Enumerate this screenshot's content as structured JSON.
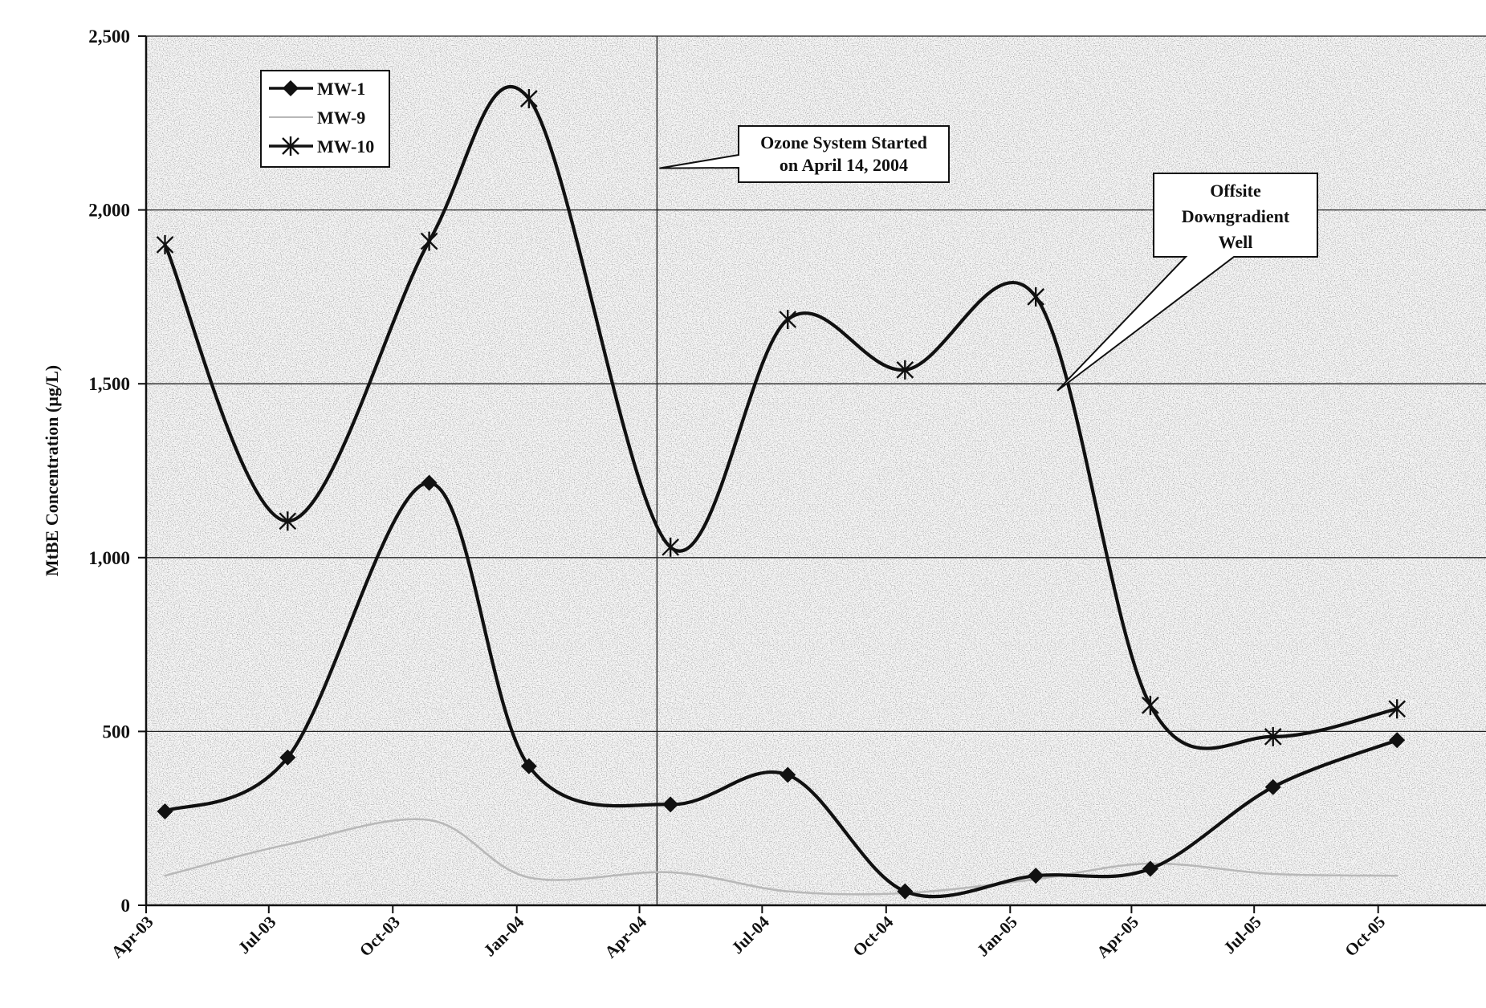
{
  "chart_data": {
    "type": "line",
    "title": "",
    "xlabel": "",
    "ylabel": "MtBE Concentration (µg/L)",
    "categories": [
      "Apr-03",
      "Jul-03",
      "Oct-03",
      "Jan-04",
      "Apr-04",
      "Jul-04",
      "Oct-04",
      "Jan-05",
      "Apr-05",
      "Jul-05",
      "Oct-05"
    ],
    "ylim": [
      0,
      2500
    ],
    "yticks": [
      0,
      500,
      1000,
      1500,
      2000,
      2500
    ],
    "ytick_labels": [
      "0",
      "500",
      "1,000",
      "1,500",
      "2,000",
      "2,500"
    ],
    "grid": true,
    "legend_position": "top-left",
    "series": [
      {
        "name": "MW-1",
        "color": "#111111",
        "marker": "diamond",
        "points": [
          {
            "x": "2003-04-15",
            "y": 270
          },
          {
            "x": "2003-07-15",
            "y": 425
          },
          {
            "x": "2003-10-28",
            "y": 1215
          },
          {
            "x": "2004-01-10",
            "y": 400
          },
          {
            "x": "2004-04-24",
            "y": 290
          },
          {
            "x": "2004-07-20",
            "y": 375
          },
          {
            "x": "2004-10-15",
            "y": 40
          },
          {
            "x": "2005-01-20",
            "y": 85
          },
          {
            "x": "2005-04-15",
            "y": 105
          },
          {
            "x": "2005-07-15",
            "y": 340
          },
          {
            "x": "2005-10-15",
            "y": 475
          }
        ]
      },
      {
        "name": "MW-9",
        "color": "#b8b8b8",
        "marker": "none",
        "points": [
          {
            "x": "2003-04-15",
            "y": 85
          },
          {
            "x": "2003-07-15",
            "y": 175
          },
          {
            "x": "2003-10-28",
            "y": 245
          },
          {
            "x": "2004-01-10",
            "y": 80
          },
          {
            "x": "2004-04-24",
            "y": 95
          },
          {
            "x": "2004-07-20",
            "y": 40
          },
          {
            "x": "2004-10-15",
            "y": 35
          },
          {
            "x": "2005-01-20",
            "y": 75
          },
          {
            "x": "2005-04-15",
            "y": 120
          },
          {
            "x": "2005-07-15",
            "y": 90
          },
          {
            "x": "2005-10-15",
            "y": 85
          }
        ]
      },
      {
        "name": "MW-10",
        "color": "#111111",
        "marker": "star",
        "points": [
          {
            "x": "2003-04-15",
            "y": 1900
          },
          {
            "x": "2003-07-15",
            "y": 1105
          },
          {
            "x": "2003-10-28",
            "y": 1910
          },
          {
            "x": "2004-01-10",
            "y": 2320
          },
          {
            "x": "2004-04-24",
            "y": 1030
          },
          {
            "x": "2004-07-20",
            "y": 1685
          },
          {
            "x": "2004-10-15",
            "y": 1540
          },
          {
            "x": "2005-01-20",
            "y": 1750
          },
          {
            "x": "2005-04-15",
            "y": 575
          },
          {
            "x": "2005-07-15",
            "y": 485
          },
          {
            "x": "2005-10-15",
            "y": 565
          }
        ]
      }
    ],
    "annotations": [
      {
        "text": [
          "Ozone System Started",
          "on April 14, 2004"
        ],
        "x": "2004-04-14"
      },
      {
        "text": [
          "Offsite",
          "Downgradient",
          "Well"
        ],
        "target_series": "MW-10"
      }
    ]
  }
}
